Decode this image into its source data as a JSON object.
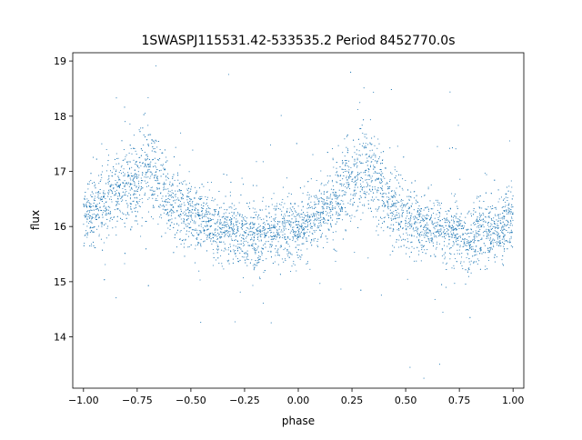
{
  "chart_data": {
    "type": "scatter",
    "title": "1SWASPJ115531.42-533535.2 Period 8452770.0s",
    "xlabel": "phase",
    "ylabel": "flux",
    "xlim": [
      -1.05,
      1.05
    ],
    "ylim": [
      13.07,
      19.15
    ],
    "x_ticks": [
      -1.0,
      -0.75,
      -0.5,
      -0.25,
      0.0,
      0.25,
      0.5,
      0.75,
      1.0
    ],
    "x_tick_labels": [
      "−1.00",
      "−0.75",
      "−0.50",
      "−0.25",
      "0.00",
      "0.25",
      "0.50",
      "0.75",
      "1.00"
    ],
    "y_ticks": [
      14,
      15,
      16,
      17,
      18,
      19
    ],
    "y_tick_labels": [
      "14",
      "15",
      "16",
      "17",
      "18",
      "19"
    ],
    "grid": false,
    "marker_color": "#1f77b4",
    "series": [
      {
        "phased_light_curve_profile": {
          "phase": [
            -1.0,
            -0.95,
            -0.9,
            -0.85,
            -0.8,
            -0.75,
            -0.7,
            -0.65,
            -0.6,
            -0.55,
            -0.5,
            -0.45,
            -0.4,
            -0.35,
            -0.3,
            -0.25,
            -0.2,
            -0.15,
            -0.1,
            -0.05,
            0.0,
            0.05,
            0.1,
            0.15,
            0.2,
            0.25,
            0.3,
            0.35,
            0.4,
            0.45,
            0.5,
            0.55,
            0.6,
            0.65,
            0.7,
            0.75,
            0.8,
            0.85,
            0.9,
            0.95,
            1.0
          ],
          "median_flux": [
            16.2,
            16.3,
            16.4,
            16.6,
            16.7,
            16.8,
            17.1,
            16.9,
            16.5,
            16.35,
            16.2,
            16.1,
            16.0,
            15.95,
            15.9,
            15.85,
            15.8,
            15.85,
            15.9,
            15.95,
            16.0,
            16.05,
            16.2,
            16.4,
            16.6,
            16.8,
            17.1,
            16.9,
            16.5,
            16.35,
            16.2,
            16.1,
            16.0,
            15.95,
            15.9,
            15.85,
            15.8,
            15.85,
            15.9,
            15.95,
            16.2
          ]
        }
      }
    ]
  }
}
